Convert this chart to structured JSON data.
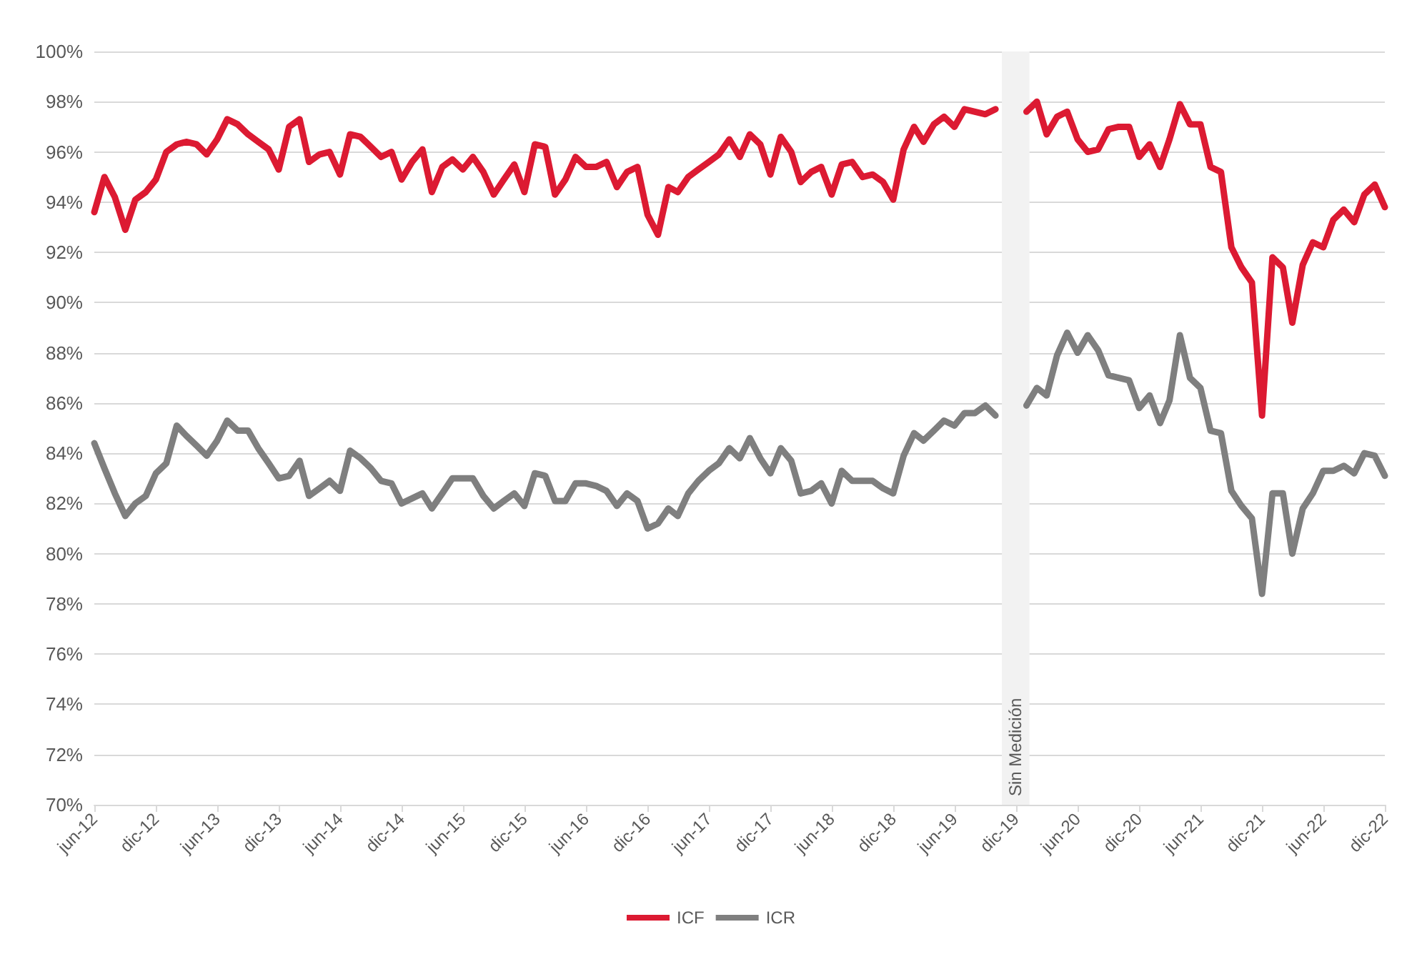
{
  "chart_data": {
    "type": "line",
    "x": [
      "2012-06",
      "2012-07",
      "2012-08",
      "2012-09",
      "2012-10",
      "2012-11",
      "2012-12",
      "2013-01",
      "2013-02",
      "2013-03",
      "2013-04",
      "2013-05",
      "2013-06",
      "2013-07",
      "2013-08",
      "2013-09",
      "2013-10",
      "2013-11",
      "2013-12",
      "2014-01",
      "2014-02",
      "2014-03",
      "2014-04",
      "2014-05",
      "2014-06",
      "2014-07",
      "2014-08",
      "2014-09",
      "2014-10",
      "2014-11",
      "2014-12",
      "2015-01",
      "2015-02",
      "2015-03",
      "2015-04",
      "2015-05",
      "2015-06",
      "2015-07",
      "2015-08",
      "2015-09",
      "2015-10",
      "2015-11",
      "2015-12",
      "2016-01",
      "2016-02",
      "2016-03",
      "2016-04",
      "2016-05",
      "2016-06",
      "2016-07",
      "2016-08",
      "2016-09",
      "2016-10",
      "2016-11",
      "2016-12",
      "2017-01",
      "2017-02",
      "2017-03",
      "2017-04",
      "2017-05",
      "2017-06",
      "2017-07",
      "2017-08",
      "2017-09",
      "2017-10",
      "2017-11",
      "2017-12",
      "2018-01",
      "2018-02",
      "2018-03",
      "2018-04",
      "2018-05",
      "2018-06",
      "2018-07",
      "2018-08",
      "2018-09",
      "2018-10",
      "2018-11",
      "2018-12",
      "2019-01",
      "2019-02",
      "2019-03",
      "2019-04",
      "2019-05",
      "2019-06",
      "2019-07",
      "2019-08",
      "2019-09",
      "2019-10",
      "2019-11",
      "2019-12",
      "2020-01",
      "2020-02",
      "2020-03",
      "2020-04",
      "2020-05",
      "2020-06",
      "2020-07",
      "2020-08",
      "2020-09",
      "2020-10",
      "2020-11",
      "2020-12",
      "2021-01",
      "2021-02",
      "2021-03",
      "2021-04",
      "2021-05",
      "2021-06",
      "2021-07",
      "2021-08",
      "2021-09",
      "2021-10",
      "2021-11",
      "2021-12",
      "2022-01",
      "2022-02",
      "2022-03",
      "2022-04",
      "2022-05",
      "2022-06",
      "2022-07",
      "2022-08",
      "2022-09",
      "2022-10",
      "2022-11",
      "2022-12"
    ],
    "series": [
      {
        "name": "ICF",
        "color": "#dc1a32",
        "values": [
          93.6,
          95.0,
          94.2,
          92.9,
          94.1,
          94.4,
          94.9,
          96.0,
          96.3,
          96.4,
          96.3,
          95.9,
          96.5,
          97.3,
          97.1,
          96.7,
          96.4,
          96.1,
          95.3,
          97.0,
          97.3,
          95.6,
          95.9,
          96.0,
          95.1,
          96.7,
          96.6,
          96.2,
          95.8,
          96.0,
          94.9,
          95.6,
          96.1,
          94.4,
          95.4,
          95.7,
          95.3,
          95.8,
          95.2,
          94.3,
          94.9,
          95.5,
          94.4,
          96.3,
          96.2,
          94.3,
          94.9,
          95.8,
          95.4,
          95.4,
          95.6,
          94.6,
          95.2,
          95.4,
          93.5,
          92.7,
          94.6,
          94.4,
          95.0,
          95.3,
          95.6,
          95.9,
          96.5,
          95.8,
          96.7,
          96.3,
          95.1,
          96.6,
          96.0,
          94.8,
          95.2,
          95.4,
          94.3,
          95.5,
          95.6,
          95.0,
          95.1,
          94.8,
          94.1,
          96.1,
          97.0,
          96.4,
          97.1,
          97.4,
          97.0,
          97.7,
          97.6,
          97.5,
          97.7,
          null,
          null,
          97.6,
          98.0,
          96.7,
          97.4,
          97.6,
          96.5,
          96.0,
          96.1,
          96.9,
          97.0,
          97.0,
          95.8,
          96.3,
          95.4,
          96.5,
          97.9,
          97.1,
          97.1,
          95.4,
          95.2,
          92.2,
          91.4,
          90.8,
          85.5,
          91.8,
          91.4,
          89.2,
          91.5,
          92.4,
          92.2,
          93.3,
          93.7,
          93.2,
          94.3,
          94.7,
          93.8
        ]
      },
      {
        "name": "ICR",
        "color": "#7f7f7f",
        "values": [
          84.4,
          83.4,
          82.4,
          81.5,
          82.0,
          82.3,
          83.2,
          83.6,
          85.1,
          84.7,
          84.3,
          83.9,
          84.5,
          85.3,
          84.9,
          84.9,
          84.2,
          83.6,
          83.0,
          83.1,
          83.7,
          82.3,
          82.6,
          82.9,
          82.5,
          84.1,
          83.8,
          83.4,
          82.9,
          82.8,
          82.0,
          82.2,
          82.4,
          81.8,
          82.4,
          83.0,
          83.0,
          83.0,
          82.3,
          81.8,
          82.1,
          82.4,
          81.9,
          83.2,
          83.1,
          82.1,
          82.1,
          82.8,
          82.8,
          82.7,
          82.5,
          81.9,
          82.4,
          82.1,
          81.0,
          81.2,
          81.8,
          81.5,
          82.4,
          82.9,
          83.3,
          83.6,
          84.2,
          83.8,
          84.6,
          83.8,
          83.2,
          84.2,
          83.7,
          82.4,
          82.5,
          82.8,
          82.0,
          83.3,
          82.9,
          82.9,
          82.9,
          82.6,
          82.4,
          83.9,
          84.8,
          84.5,
          84.9,
          85.3,
          85.1,
          85.6,
          85.6,
          85.9,
          85.5,
          null,
          null,
          85.9,
          86.6,
          86.3,
          87.9,
          88.8,
          88.0,
          88.7,
          88.1,
          87.1,
          87.0,
          86.9,
          85.8,
          86.3,
          85.2,
          86.1,
          88.7,
          87.0,
          86.6,
          84.9,
          84.8,
          82.5,
          81.9,
          81.4,
          78.4,
          82.4,
          82.4,
          80.0,
          81.8,
          82.4,
          83.3,
          83.3,
          83.5,
          83.2,
          84.0,
          83.9,
          83.1
        ]
      }
    ],
    "xlim": [
      "2012-06",
      "2022-12"
    ],
    "xticks": [
      {
        "value": "2012-06",
        "label": "jun-12"
      },
      {
        "value": "2012-12",
        "label": "dic-12"
      },
      {
        "value": "2013-06",
        "label": "jun-13"
      },
      {
        "value": "2013-12",
        "label": "dic-13"
      },
      {
        "value": "2014-06",
        "label": "jun-14"
      },
      {
        "value": "2014-12",
        "label": "dic-14"
      },
      {
        "value": "2015-06",
        "label": "jun-15"
      },
      {
        "value": "2015-12",
        "label": "dic-15"
      },
      {
        "value": "2016-06",
        "label": "jun-16"
      },
      {
        "value": "2016-12",
        "label": "dic-16"
      },
      {
        "value": "2017-06",
        "label": "jun-17"
      },
      {
        "value": "2017-12",
        "label": "dic-17"
      },
      {
        "value": "2018-06",
        "label": "jun-18"
      },
      {
        "value": "2018-12",
        "label": "dic-18"
      },
      {
        "value": "2019-06",
        "label": "jun-19"
      },
      {
        "value": "2019-12",
        "label": "dic-19"
      },
      {
        "value": "2020-06",
        "label": "jun-20"
      },
      {
        "value": "2020-12",
        "label": "dic-20"
      },
      {
        "value": "2021-06",
        "label": "jun-21"
      },
      {
        "value": "2021-12",
        "label": "dic-21"
      },
      {
        "value": "2022-06",
        "label": "jun-22"
      },
      {
        "value": "2022-12",
        "label": "dic-22"
      }
    ],
    "ylim": [
      70,
      100
    ],
    "yticks": [
      {
        "value": 70,
        "label": "70%"
      },
      {
        "value": 72,
        "label": "72%"
      },
      {
        "value": 74,
        "label": "74%"
      },
      {
        "value": 76,
        "label": "76%"
      },
      {
        "value": 78,
        "label": "78%"
      },
      {
        "value": 80,
        "label": "80%"
      },
      {
        "value": 82,
        "label": "82%"
      },
      {
        "value": 84,
        "label": "84%"
      },
      {
        "value": 86,
        "label": "86%"
      },
      {
        "value": 88,
        "label": "88%"
      },
      {
        "value": 90,
        "label": "90%"
      },
      {
        "value": 92,
        "label": "92%"
      },
      {
        "value": 94,
        "label": "94%"
      },
      {
        "value": 96,
        "label": "96%"
      },
      {
        "value": 98,
        "label": "98%"
      },
      {
        "value": 100,
        "label": "100%"
      }
    ],
    "bands": [
      {
        "axis": "x",
        "from": "2019-10-20",
        "to": "2020-01-10",
        "label": "Sin Medición",
        "color": "#f2f2f2"
      }
    ],
    "grid": "y",
    "legend": "bottom",
    "marker": "none",
    "line_style": "solid"
  }
}
